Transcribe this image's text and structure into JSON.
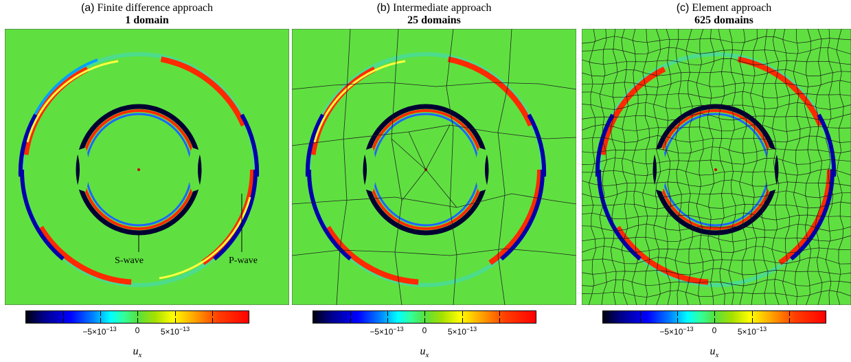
{
  "colorbar": {
    "neg_label_base": "−5×10",
    "neg_label_exp": "−13",
    "zero_label": "0",
    "pos_label_base": "5×10",
    "pos_label_exp": "−13",
    "unit_base": "u",
    "unit_sub": "x"
  },
  "panels": [
    {
      "letter": "(a)",
      "name": "Finite difference approach",
      "domains": "1 domain",
      "grid_n": 1
    },
    {
      "letter": "(b)",
      "name": "Intermediate approach",
      "domains": "25 domains",
      "grid_n": 5
    },
    {
      "letter": "(c)",
      "name": "Element approach",
      "domains": "625 domains",
      "grid_n": 25
    }
  ],
  "annotations": {
    "s_wave": "S-wave",
    "p_wave": "P-wave"
  },
  "colors": {
    "background_field": "#5fe040",
    "p_wave": "#ff2a00",
    "s_wave_dark": "#000033",
    "source": "#cc0000"
  }
}
